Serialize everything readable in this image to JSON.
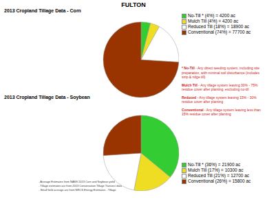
{
  "title": "FULTON",
  "chart_data": [
    {
      "type": "pie",
      "title": "2013 Cropland Tillage Data - Corn",
      "categories": [
        "No-Till * (4%) = 4200 ac",
        "Mulch Till (4%) = 4200 ac",
        "Reduced Till (18%) = 18900 ac",
        "Conventional (74%) = 77700 ac"
      ],
      "values": [
        4,
        4,
        18,
        74
      ],
      "colors": [
        "#33cc33",
        "#eedd22",
        "#ffffff",
        "#993300"
      ]
    },
    {
      "type": "pie",
      "title": "2013 Cropland Tillage Data - Soybean",
      "categories": [
        "No-Till * (36%) = 21900 ac",
        "Mulch Till (17%) = 10300 ac",
        "Reduced Till (21%) = 12700 ac",
        "Conventional (26%) = 15800 ac"
      ],
      "values": [
        36,
        17,
        21,
        26
      ],
      "colors": [
        "#33cc33",
        "#eedd22",
        "#ffffff",
        "#993300"
      ]
    }
  ],
  "definitions": [
    {
      "term": "* No-Till",
      "text": " - Any direct seeding system, including site preparation, with minimal soil disturbance (includes strip & ridge till)"
    },
    {
      "term": "Mulch Till",
      "text": " - Any tillage system leaving 30% - 75% residue cover after planting, excluding no-till"
    },
    {
      "term": "Reduced",
      "text": " - Any tillage system leaving 15% - 30% residue cover after planting"
    },
    {
      "term": "Conventional",
      "text": " - Any tillage system leaving less than 15% residue cover after planting"
    }
  ],
  "notes": [
    "- Acreage Estimates from NASS 2013 Corn and Soybean yield",
    "- Tillage estimates are from 2013 Conservation Tillage Transect data",
    "- Small field acreage are from NRCS Energy Estimates - Tillage"
  ]
}
